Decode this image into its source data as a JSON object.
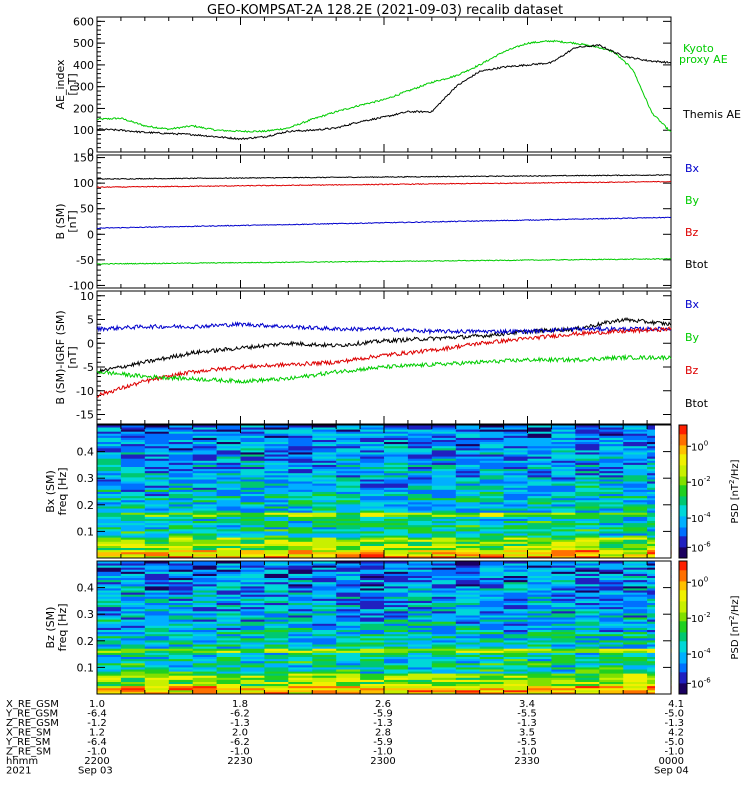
{
  "title": "GEO-KOMPSAT-2A 128.2E (2021-09-03) recalib dataset",
  "chart_data": [
    {
      "type": "line",
      "ylabel": "AE_index\n[nT]",
      "ylim": [
        0,
        620
      ],
      "yticks": [
        0,
        100,
        200,
        300,
        400,
        500,
        600
      ],
      "x_range": [
        "2021-09-03 22:00",
        "2021-09-04 00:00"
      ],
      "series": [
        {
          "name": "Kyoto\nproxy AE",
          "color": "#00cc00",
          "x": [
            0,
            5,
            10,
            15,
            20,
            25,
            30,
            35,
            40,
            45,
            50,
            55,
            60,
            65,
            70,
            75,
            80,
            85,
            90,
            95,
            100,
            105,
            108,
            112,
            116,
            120
          ],
          "values": [
            150,
            155,
            120,
            105,
            120,
            100,
            95,
            95,
            110,
            150,
            185,
            215,
            240,
            280,
            320,
            350,
            400,
            460,
            500,
            510,
            500,
            480,
            460,
            380,
            180,
            90
          ]
        },
        {
          "name": "Themis AE",
          "color": "#000000",
          "x": [
            0,
            5,
            10,
            15,
            20,
            25,
            30,
            35,
            40,
            45,
            50,
            55,
            60,
            65,
            70,
            75,
            80,
            85,
            90,
            95,
            100,
            105,
            110,
            115,
            120
          ],
          "values": [
            105,
            100,
            90,
            85,
            80,
            70,
            60,
            70,
            95,
            100,
            110,
            140,
            160,
            185,
            185,
            300,
            370,
            390,
            400,
            410,
            480,
            490,
            440,
            420,
            410
          ]
        }
      ]
    },
    {
      "type": "line",
      "ylabel": "B (SM)\n[nT]",
      "ylim": [
        -105,
        155
      ],
      "yticks": [
        -100,
        -50,
        0,
        50,
        100,
        150
      ],
      "series": [
        {
          "name": "Bx",
          "color": "#000000",
          "x": [
            0,
            120
          ],
          "values": [
            108,
            116
          ]
        },
        {
          "name": "By",
          "color": "#0000cc",
          "x": [
            0,
            120
          ],
          "values": [
            12,
            33
          ]
        },
        {
          "name": "Bz",
          "color": "#dd0000",
          "x": [
            0,
            120
          ],
          "values": [
            92,
            103
          ]
        },
        {
          "name": "Btot",
          "color": "#00cc00",
          "x": [
            0,
            120
          ],
          "values": [
            -58,
            -48
          ]
        }
      ]
    },
    {
      "type": "line",
      "ylabel": "B (SM)-IGRF (SM)\n[nT]",
      "ylim": [
        -17,
        11
      ],
      "yticks": [
        -15,
        -10,
        -5,
        0,
        5,
        10
      ],
      "series": [
        {
          "name": "Bx",
          "color": "#000000",
          "x": [
            0,
            10,
            20,
            30,
            40,
            50,
            60,
            70,
            80,
            90,
            100,
            110,
            120
          ],
          "values": [
            -6,
            -4,
            -2,
            -1,
            0,
            -0.5,
            0.5,
            1,
            1.5,
            2.5,
            3,
            5,
            4
          ]
        },
        {
          "name": "By",
          "color": "#0000cc",
          "x": [
            0,
            10,
            20,
            30,
            40,
            50,
            60,
            70,
            80,
            90,
            100,
            110,
            120
          ],
          "values": [
            3,
            3.5,
            3.5,
            4,
            3.5,
            3,
            3,
            2.5,
            2.5,
            2.5,
            3,
            3,
            3
          ]
        },
        {
          "name": "Bz",
          "color": "#dd0000",
          "x": [
            0,
            10,
            20,
            30,
            40,
            50,
            60,
            70,
            80,
            90,
            100,
            110,
            120
          ],
          "values": [
            -11,
            -8,
            -6,
            -5,
            -4.5,
            -4,
            -2.5,
            -1.5,
            0,
            1,
            2,
            2.5,
            3
          ]
        },
        {
          "name": "Btot",
          "color": "#00cc00",
          "x": [
            0,
            10,
            20,
            30,
            40,
            50,
            60,
            70,
            80,
            90,
            100,
            110,
            120
          ],
          "values": [
            -6,
            -7,
            -7.5,
            -8,
            -7.5,
            -6,
            -5,
            -4.5,
            -4,
            -3.5,
            -3.5,
            -3,
            -3
          ]
        }
      ]
    },
    {
      "type": "heatmap",
      "ylabel": "Bx (SM)\nfreq [Hz]",
      "ylim": [
        0,
        0.5
      ],
      "yticks": [
        0.1,
        0.2,
        0.3,
        0.4
      ],
      "colorbar": {
        "label": "PSD [nT^2/Hz]",
        "ticks": [
          "10^0",
          "10^-2",
          "10^-4",
          "10^-6"
        ]
      }
    },
    {
      "type": "heatmap",
      "ylabel": "Bz (SM)\nfreq [Hz]",
      "ylim": [
        0,
        0.5
      ],
      "yticks": [
        0.1,
        0.2,
        0.3,
        0.4
      ],
      "colorbar": {
        "label": "PSD [nT^2/Hz]",
        "ticks": [
          "10^0",
          "10^-2",
          "10^-4",
          "10^-6"
        ]
      }
    }
  ],
  "ephemeris": {
    "labels": [
      "X_RE_GSM",
      "Y_RE_GSM",
      "Z_RE_GSM",
      "X_RE_SM",
      "Y_RE_SM",
      "Z_RE_SM",
      "hhmm",
      "2021"
    ],
    "columns": [
      [
        "1.0",
        "-6.4",
        "-1.2",
        "1.2",
        "-6.4",
        "-1.0",
        "2200",
        "Sep 03"
      ],
      [
        "1.8",
        "-6.2",
        "-1.3",
        "2.0",
        "-6.2",
        "-1.0",
        "2230",
        ""
      ],
      [
        "2.6",
        "-5.9",
        "-1.3",
        "2.8",
        "-5.9",
        "-1.0",
        "2300",
        ""
      ],
      [
        "3.4",
        "-5.5",
        "-1.3",
        "3.5",
        "-5.5",
        "-1.0",
        "2330",
        ""
      ],
      [
        "4.1",
        "-5.0",
        "-1.3",
        "4.2",
        "-5.0",
        "-1.0",
        "0000",
        "Sep 04"
      ]
    ]
  }
}
